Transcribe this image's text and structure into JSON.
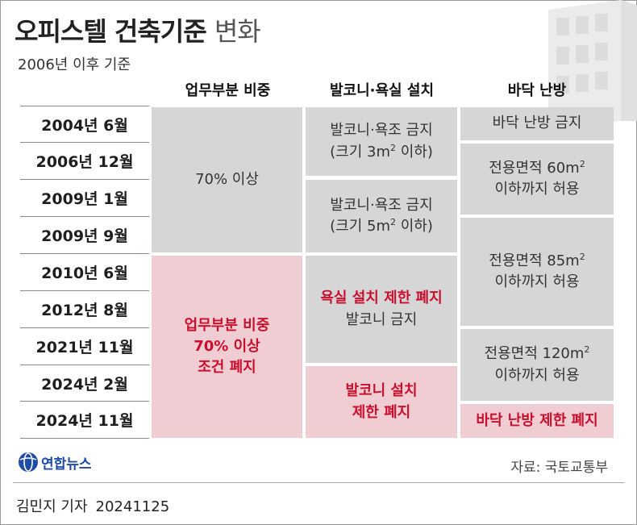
{
  "header": {
    "title_main": "오피스텔 건축기준",
    "title_sub": "변화",
    "subtitle": "2006년 이후 기준"
  },
  "columns": [
    "업무부분 비중",
    "발코니·욕실 설치",
    "바닥 난방"
  ],
  "dates": [
    "2004년 6월",
    "2006년 12월",
    "2009년 1월",
    "2009년 9월",
    "2010년 6월",
    "2012년 8월",
    "2021년 11월",
    "2024년 2월",
    "2024년 11월"
  ],
  "cells": {
    "business_1": "70% 이상",
    "business_2": [
      "업무부분 비중",
      "70% 이상",
      "조건 폐지"
    ],
    "balcony_1": {
      "line1": "발코니·욕조 금지",
      "line2_pre": "(크기 3m",
      "sup": "2",
      "line2_post": " 이하)"
    },
    "balcony_2": {
      "line1": "발코니·욕조 금지",
      "line2_pre": "(크기 5m",
      "sup": "2",
      "line2_post": " 이하)"
    },
    "balcony_3": {
      "line1": "욕실 설치 제한 폐지",
      "line2": "발코니 금지"
    },
    "balcony_4": [
      "발코니 설치",
      "제한 폐지"
    ],
    "heating_1": "바닥 난방 금지",
    "heating_2": {
      "line1_pre": "전용면적 60m",
      "sup": "2",
      "line2": "이하까지 허용"
    },
    "heating_3": {
      "line1_pre": "전용면적 85m",
      "sup": "2",
      "line2": "이하까지 허용"
    },
    "heating_4": {
      "line1_pre": "전용면적 120m",
      "sup": "2",
      "line2": "이하까지 허용"
    },
    "heating_5": "바닥 난방 제한 폐지"
  },
  "footer": {
    "logo_text": "연합뉴스",
    "source": "자료: 국토교통부",
    "reporter": "김민지 기자",
    "date_stamp": "20241125"
  },
  "colors": {
    "gray_cell": "#d6d6d6",
    "pink_cell": "#f0cdd2",
    "highlight_text": "#c8102e",
    "logo": "#1f4aa8"
  }
}
